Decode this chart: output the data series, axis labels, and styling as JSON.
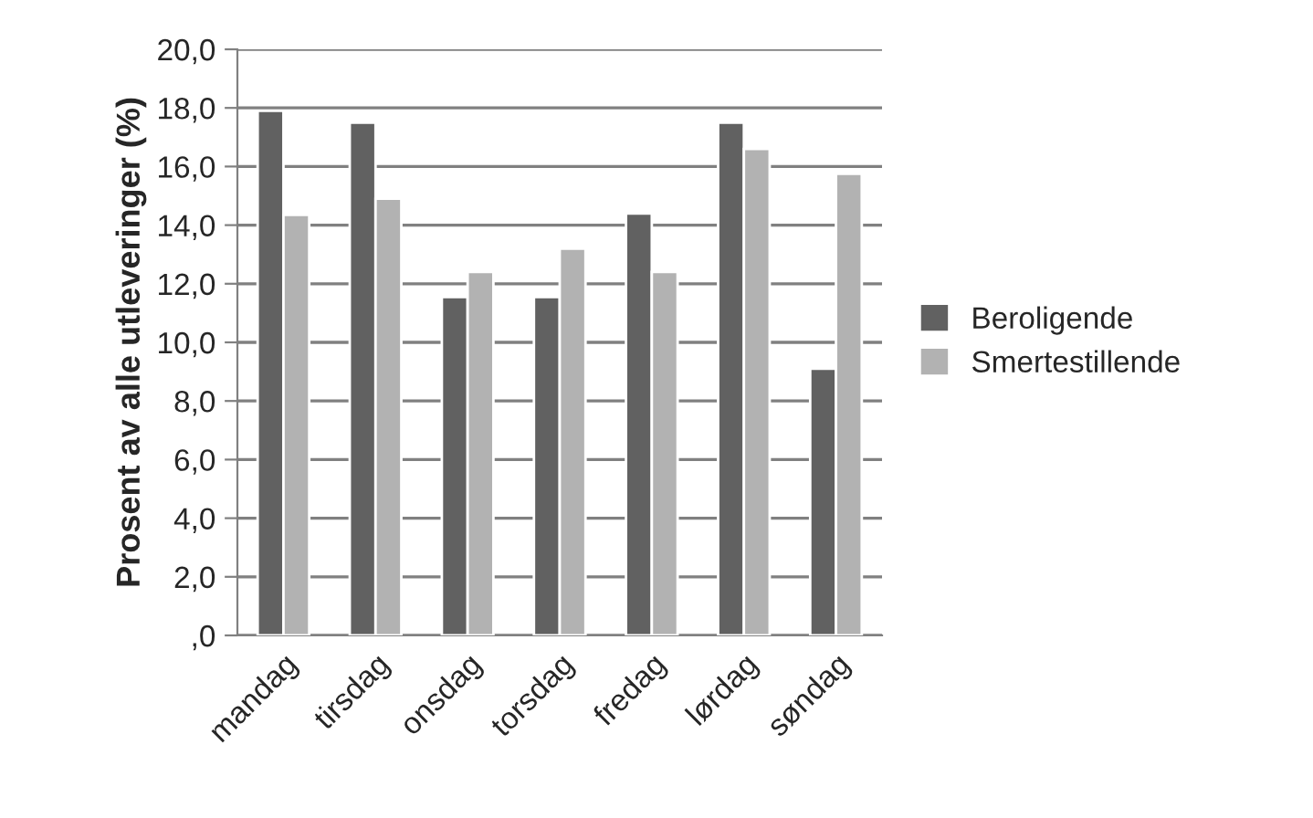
{
  "chart_data": {
    "type": "bar",
    "ylabel": "Prosent av alle utleveringer (%)",
    "categories": [
      "mandag",
      "tirsdag",
      "onsdag",
      "torsdag",
      "fredag",
      "lørdag",
      "søndag"
    ],
    "series": [
      {
        "name": "Beroligende",
        "color": "#616161",
        "values": [
          17.9,
          17.5,
          11.55,
          11.55,
          14.4,
          17.5,
          9.1
        ]
      },
      {
        "name": "Smertestillende",
        "color": "#b2b2b2",
        "values": [
          14.35,
          14.9,
          12.4,
          13.2,
          12.4,
          16.6,
          15.75
        ]
      }
    ],
    "ylim": [
      0,
      20
    ],
    "yticks": [
      {
        "value": 0,
        "label": ",0"
      },
      {
        "value": 2,
        "label": "2,0"
      },
      {
        "value": 4,
        "label": "4,0"
      },
      {
        "value": 6,
        "label": "6,0"
      },
      {
        "value": 8,
        "label": "8,0"
      },
      {
        "value": 10,
        "label": "10,0"
      },
      {
        "value": 12,
        "label": "12,0"
      },
      {
        "value": 14,
        "label": "14,0"
      },
      {
        "value": 16,
        "label": "16,0"
      },
      {
        "value": 18,
        "label": "18,0"
      },
      {
        "value": 20,
        "label": "20,0"
      }
    ],
    "grid": "y",
    "legend": "right"
  }
}
